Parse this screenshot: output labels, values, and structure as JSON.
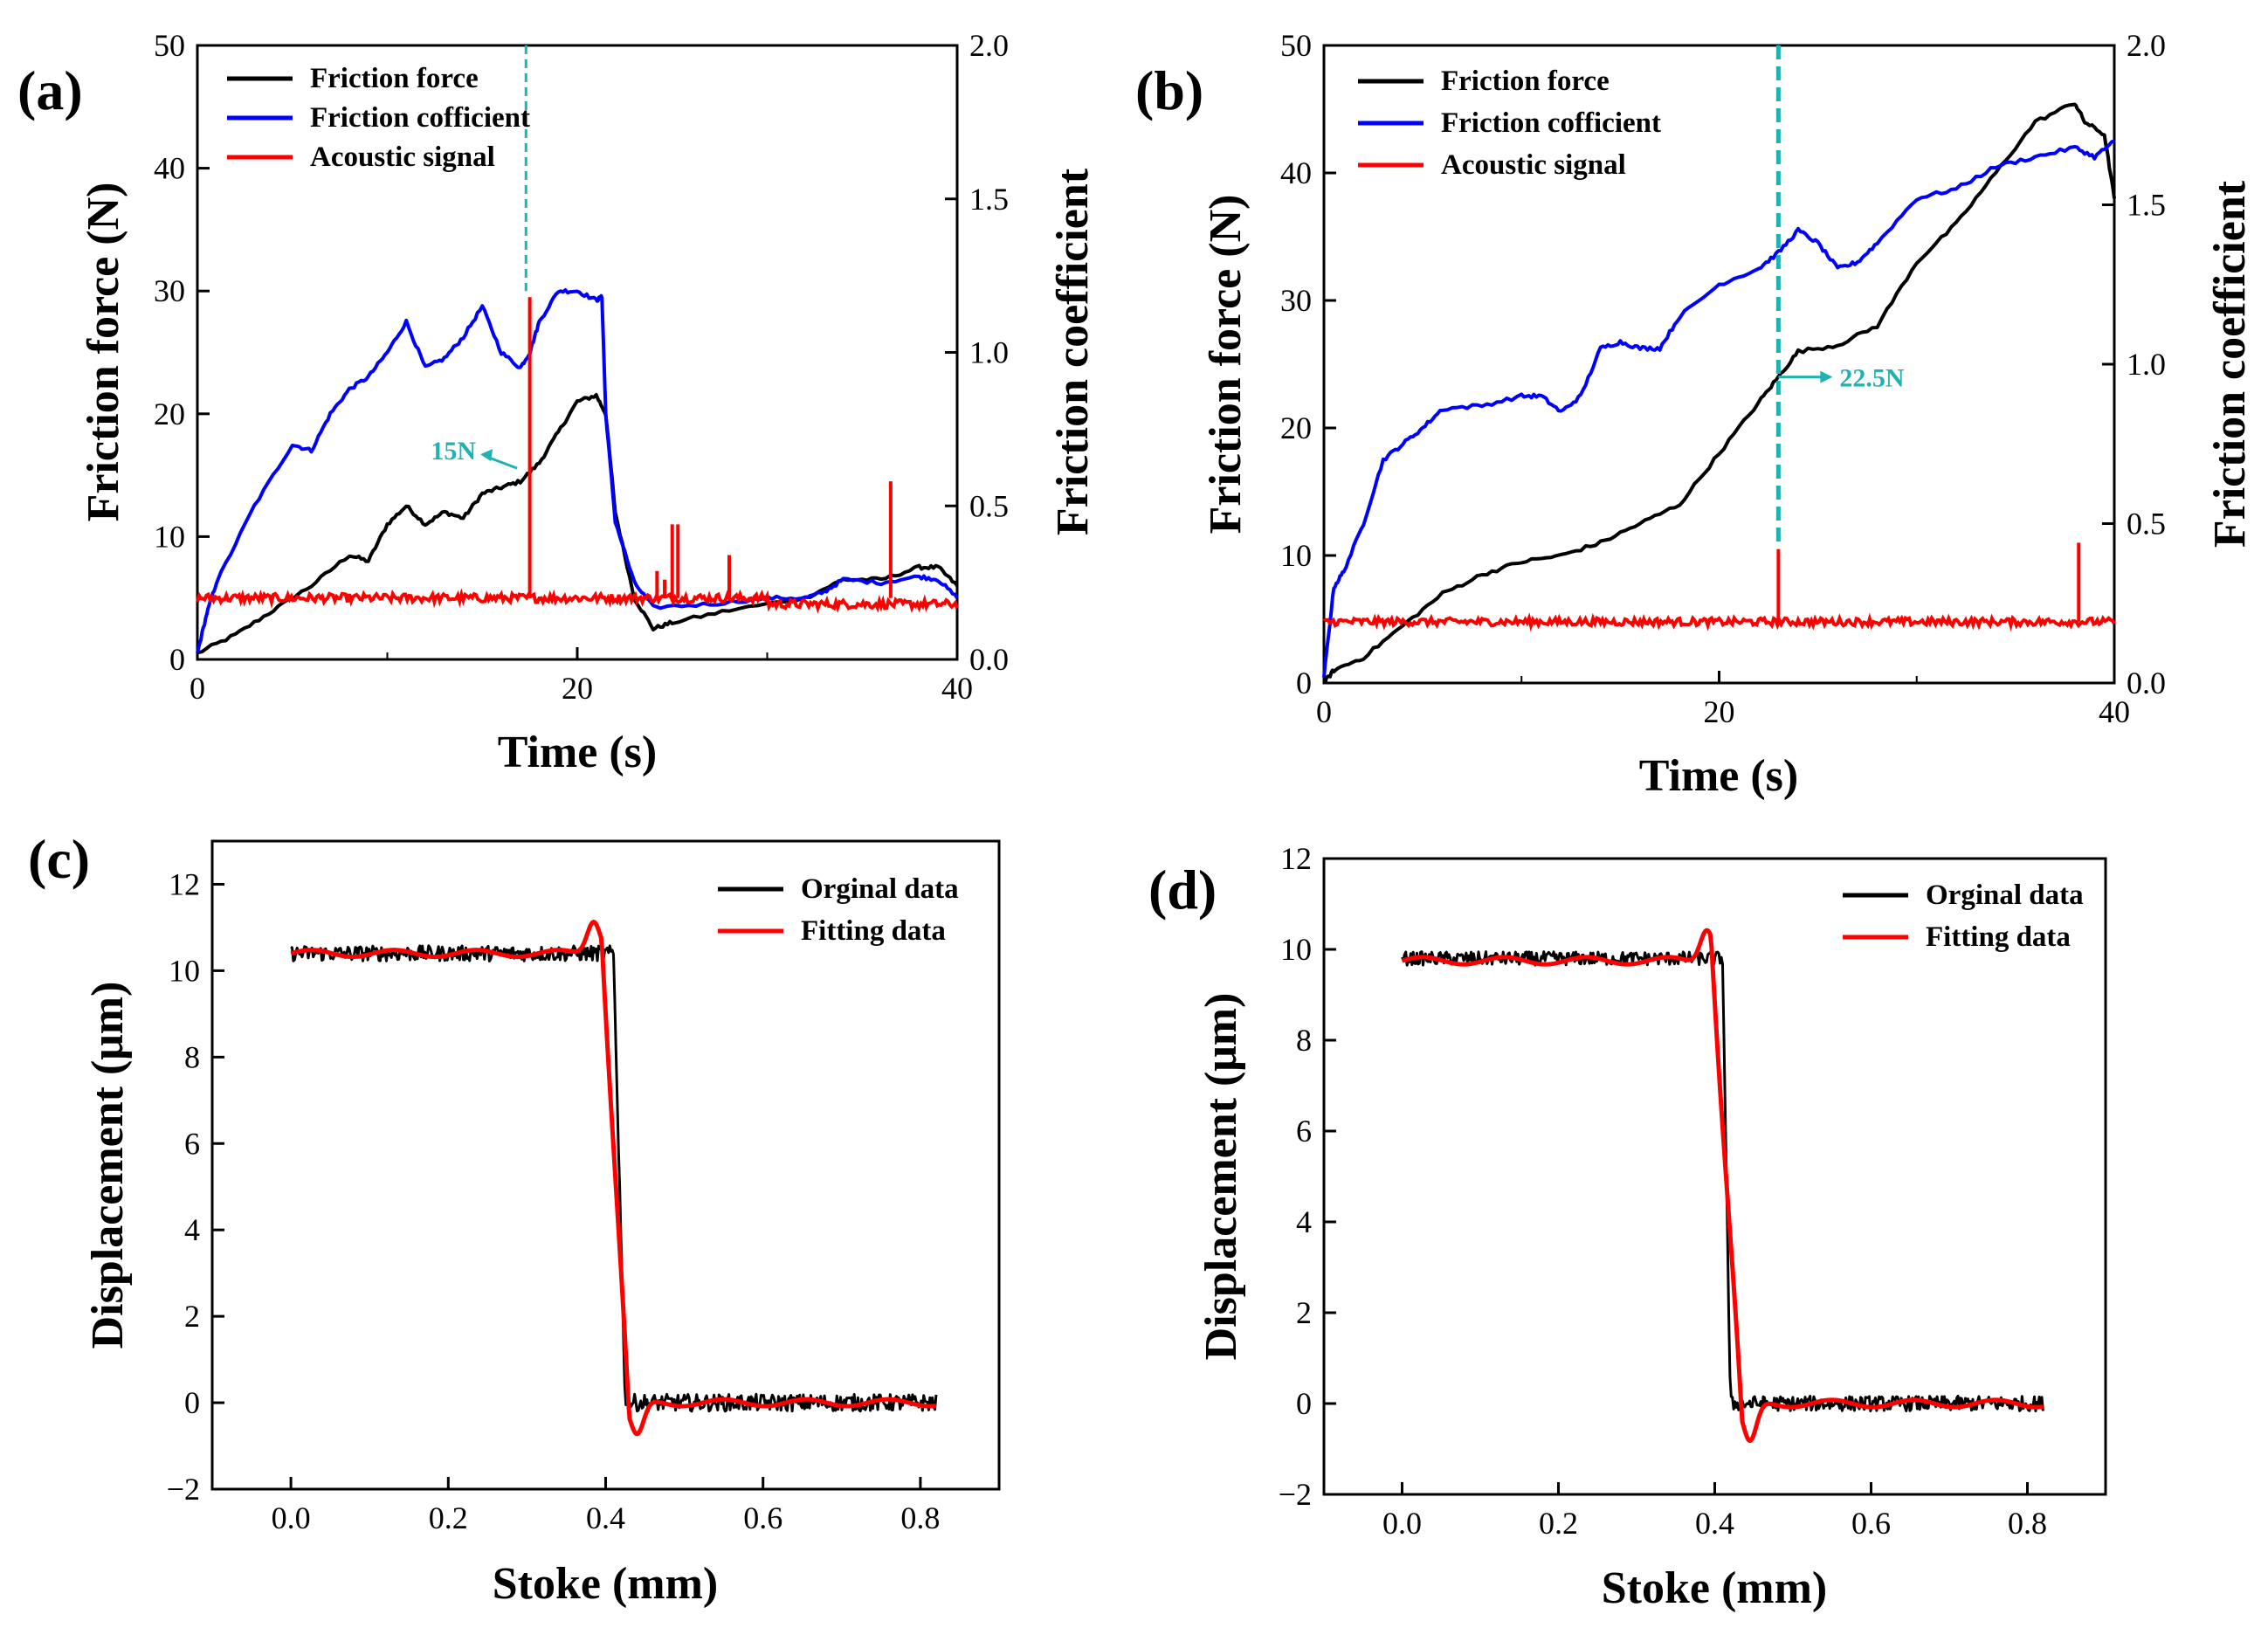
{
  "chart_data": [
    {
      "panel": "(a)",
      "type": "line",
      "xlabel": "Time (s)",
      "ylabel": "Friction force (N)",
      "ylabel_right": "Friction coefficient",
      "xlim": [
        0,
        40
      ],
      "ylim": [
        0,
        50
      ],
      "ylim_right": [
        0,
        2.0
      ],
      "xticks": [
        0,
        20,
        40
      ],
      "yticks": [
        0,
        10,
        20,
        30,
        40,
        50
      ],
      "yticks_right": [
        "0.0",
        "0.5",
        "1.0",
        "1.5",
        "2.0"
      ],
      "legend_position": "top-left",
      "series": [
        {
          "name": "Friction force",
          "color": "#000000",
          "axis": "left",
          "x": [
            0,
            2,
            4,
            6,
            8,
            9,
            10,
            11,
            12,
            13,
            14,
            15,
            16,
            17,
            18,
            19,
            20,
            21,
            21.5,
            22,
            23,
            24,
            25,
            28,
            32,
            34,
            36,
            38,
            39,
            40
          ],
          "y": [
            0.5,
            2,
            4,
            6,
            8.5,
            8,
            11,
            12.5,
            11,
            12,
            11.5,
            13.5,
            14,
            14.5,
            16,
            18.5,
            21,
            21.5,
            20,
            12,
            5,
            2.5,
            3,
            4,
            5,
            6.5,
            6.5,
            7.5,
            7.5,
            6
          ]
        },
        {
          "name": "Friction cofficient",
          "color": "#0000ff",
          "axis": "right",
          "x": [
            0,
            0.5,
            1,
            3,
            5,
            6,
            7,
            8,
            9,
            10,
            11,
            12,
            13,
            14,
            15,
            16,
            17,
            17.5,
            18,
            19,
            20,
            21,
            21.3,
            21.5,
            22,
            23,
            24,
            27,
            30,
            32,
            33,
            34,
            36,
            38,
            39,
            40
          ],
          "y": [
            0.02,
            0.15,
            0.25,
            0.5,
            0.7,
            0.68,
            0.8,
            0.88,
            0.92,
            1.0,
            1.1,
            0.95,
            0.98,
            1.05,
            1.15,
            1.0,
            0.95,
            1.0,
            1.1,
            1.2,
            1.2,
            1.17,
            1.18,
            0.8,
            0.45,
            0.25,
            0.17,
            0.18,
            0.2,
            0.2,
            0.22,
            0.26,
            0.25,
            0.27,
            0.26,
            0.2
          ]
        },
        {
          "name": "Acoustic signal",
          "color": "#ff0000",
          "axis": "left",
          "baseline": 5,
          "noise": 0.35,
          "spikes": [
            [
              17.5,
              29.5
            ],
            [
              24.2,
              7.2
            ],
            [
              24.6,
              6.5
            ],
            [
              25.0,
              11
            ],
            [
              25.3,
              11
            ],
            [
              28.0,
              8.5
            ],
            [
              36.5,
              14.5
            ]
          ]
        }
      ],
      "annotations": {
        "label": "15N",
        "x": 17.2,
        "y": 15,
        "line_x": 17.3
      }
    },
    {
      "panel": "(b)",
      "type": "line",
      "xlabel": "Time (s)",
      "ylabel": "Friction force (N)",
      "ylabel_right": "Friction coefficient",
      "xlim": [
        0,
        40
      ],
      "ylim": [
        0,
        50
      ],
      "ylim_right": [
        0,
        2.0
      ],
      "xticks": [
        0,
        20,
        40
      ],
      "yticks": [
        0,
        10,
        20,
        30,
        40,
        50
      ],
      "yticks_right": [
        "0.0",
        "0.5",
        "1.0",
        "1.5",
        "2.0"
      ],
      "legend_position": "top-left",
      "series": [
        {
          "name": "Friction force",
          "color": "#000000",
          "axis": "left",
          "x": [
            0,
            0.5,
            2,
            4,
            6,
            8,
            10,
            12,
            14,
            16,
            18,
            20,
            22,
            23,
            24,
            26,
            28,
            30,
            32,
            34,
            36,
            38,
            38.5,
            39.5,
            40
          ],
          "y": [
            0,
            1,
            2,
            4.5,
            7,
            8.5,
            9.5,
            10,
            11,
            12.5,
            14,
            18,
            22,
            24,
            26,
            26.5,
            28,
            33,
            36,
            40,
            44,
            45.5,
            44,
            43,
            38
          ]
        },
        {
          "name": "Friction cofficient",
          "color": "#0000ff",
          "axis": "right",
          "x": [
            0,
            0.5,
            1,
            2,
            3,
            4,
            5,
            6,
            8,
            10,
            11,
            12,
            13,
            14,
            15,
            16,
            17,
            18,
            20,
            22,
            23,
            24,
            25,
            26,
            27,
            28,
            30,
            32,
            34,
            36,
            38,
            39,
            40
          ],
          "y": [
            0.02,
            0.3,
            0.35,
            0.5,
            0.7,
            0.75,
            0.8,
            0.86,
            0.87,
            0.9,
            0.9,
            0.85,
            0.9,
            1.05,
            1.07,
            1.05,
            1.05,
            1.15,
            1.25,
            1.3,
            1.35,
            1.42,
            1.38,
            1.3,
            1.32,
            1.38,
            1.52,
            1.55,
            1.62,
            1.65,
            1.68,
            1.65,
            1.7
          ]
        },
        {
          "name": "Acoustic signal",
          "color": "#ff0000",
          "axis": "left",
          "baseline": 4.8,
          "noise": 0.3,
          "spikes": [
            [
              23.0,
              10.5
            ],
            [
              38.2,
              11
            ]
          ]
        }
      ],
      "annotations": {
        "label": "22.5N",
        "x": 23.0,
        "y": 24,
        "line_x": 23.0
      }
    },
    {
      "panel": "(c)",
      "type": "line",
      "xlabel": "Stoke (mm)",
      "ylabel": "Displacement (μm)",
      "xlim": [
        -0.1,
        0.9
      ],
      "ylim": [
        -2,
        13
      ],
      "xticks": [
        "0.0",
        "0.2",
        "0.4",
        "0.6",
        "0.8"
      ],
      "yticks": [
        "−2",
        "0",
        "2",
        "4",
        "6",
        "8",
        "10",
        "12"
      ],
      "legend_position": "top-right",
      "series": [
        {
          "name": "Orginal data",
          "color": "#000000",
          "high": 10.4,
          "low": 0.0,
          "step_start": 0.41,
          "step_end": 0.425,
          "x_start": 0.0,
          "x_end": 0.82,
          "noise": 0.18
        },
        {
          "name": "Fitting data",
          "color": "#ff0000",
          "high": 10.4,
          "low": 0.0,
          "step_start": 0.395,
          "step_end": 0.43,
          "x_start": 0.0,
          "x_end": 0.82,
          "overshoot": [
            0.385,
            11.2
          ],
          "undershoot": [
            0.44,
            -0.8
          ]
        }
      ]
    },
    {
      "panel": "(d)",
      "type": "line",
      "xlabel": "Stoke (mm)",
      "ylabel": "Displacement (μm)",
      "xlim": [
        -0.1,
        0.9
      ],
      "ylim": [
        -2,
        12
      ],
      "xticks": [
        "0.0",
        "0.2",
        "0.4",
        "0.6",
        "0.8"
      ],
      "yticks": [
        "−2",
        "0",
        "2",
        "4",
        "6",
        "8",
        "10",
        "12"
      ],
      "legend_position": "top-right",
      "series": [
        {
          "name": "Orginal data",
          "color": "#000000",
          "high": 9.8,
          "low": 0.0,
          "step_start": 0.41,
          "step_end": 0.42,
          "x_start": 0.0,
          "x_end": 0.82,
          "noise": 0.15
        },
        {
          "name": "Fitting data",
          "color": "#ff0000",
          "high": 9.75,
          "low": 0.0,
          "step_start": 0.395,
          "step_end": 0.435,
          "x_start": 0.0,
          "x_end": 0.82,
          "overshoot": [
            0.39,
            10.5
          ],
          "undershoot": [
            0.445,
            -0.9
          ]
        }
      ]
    }
  ]
}
